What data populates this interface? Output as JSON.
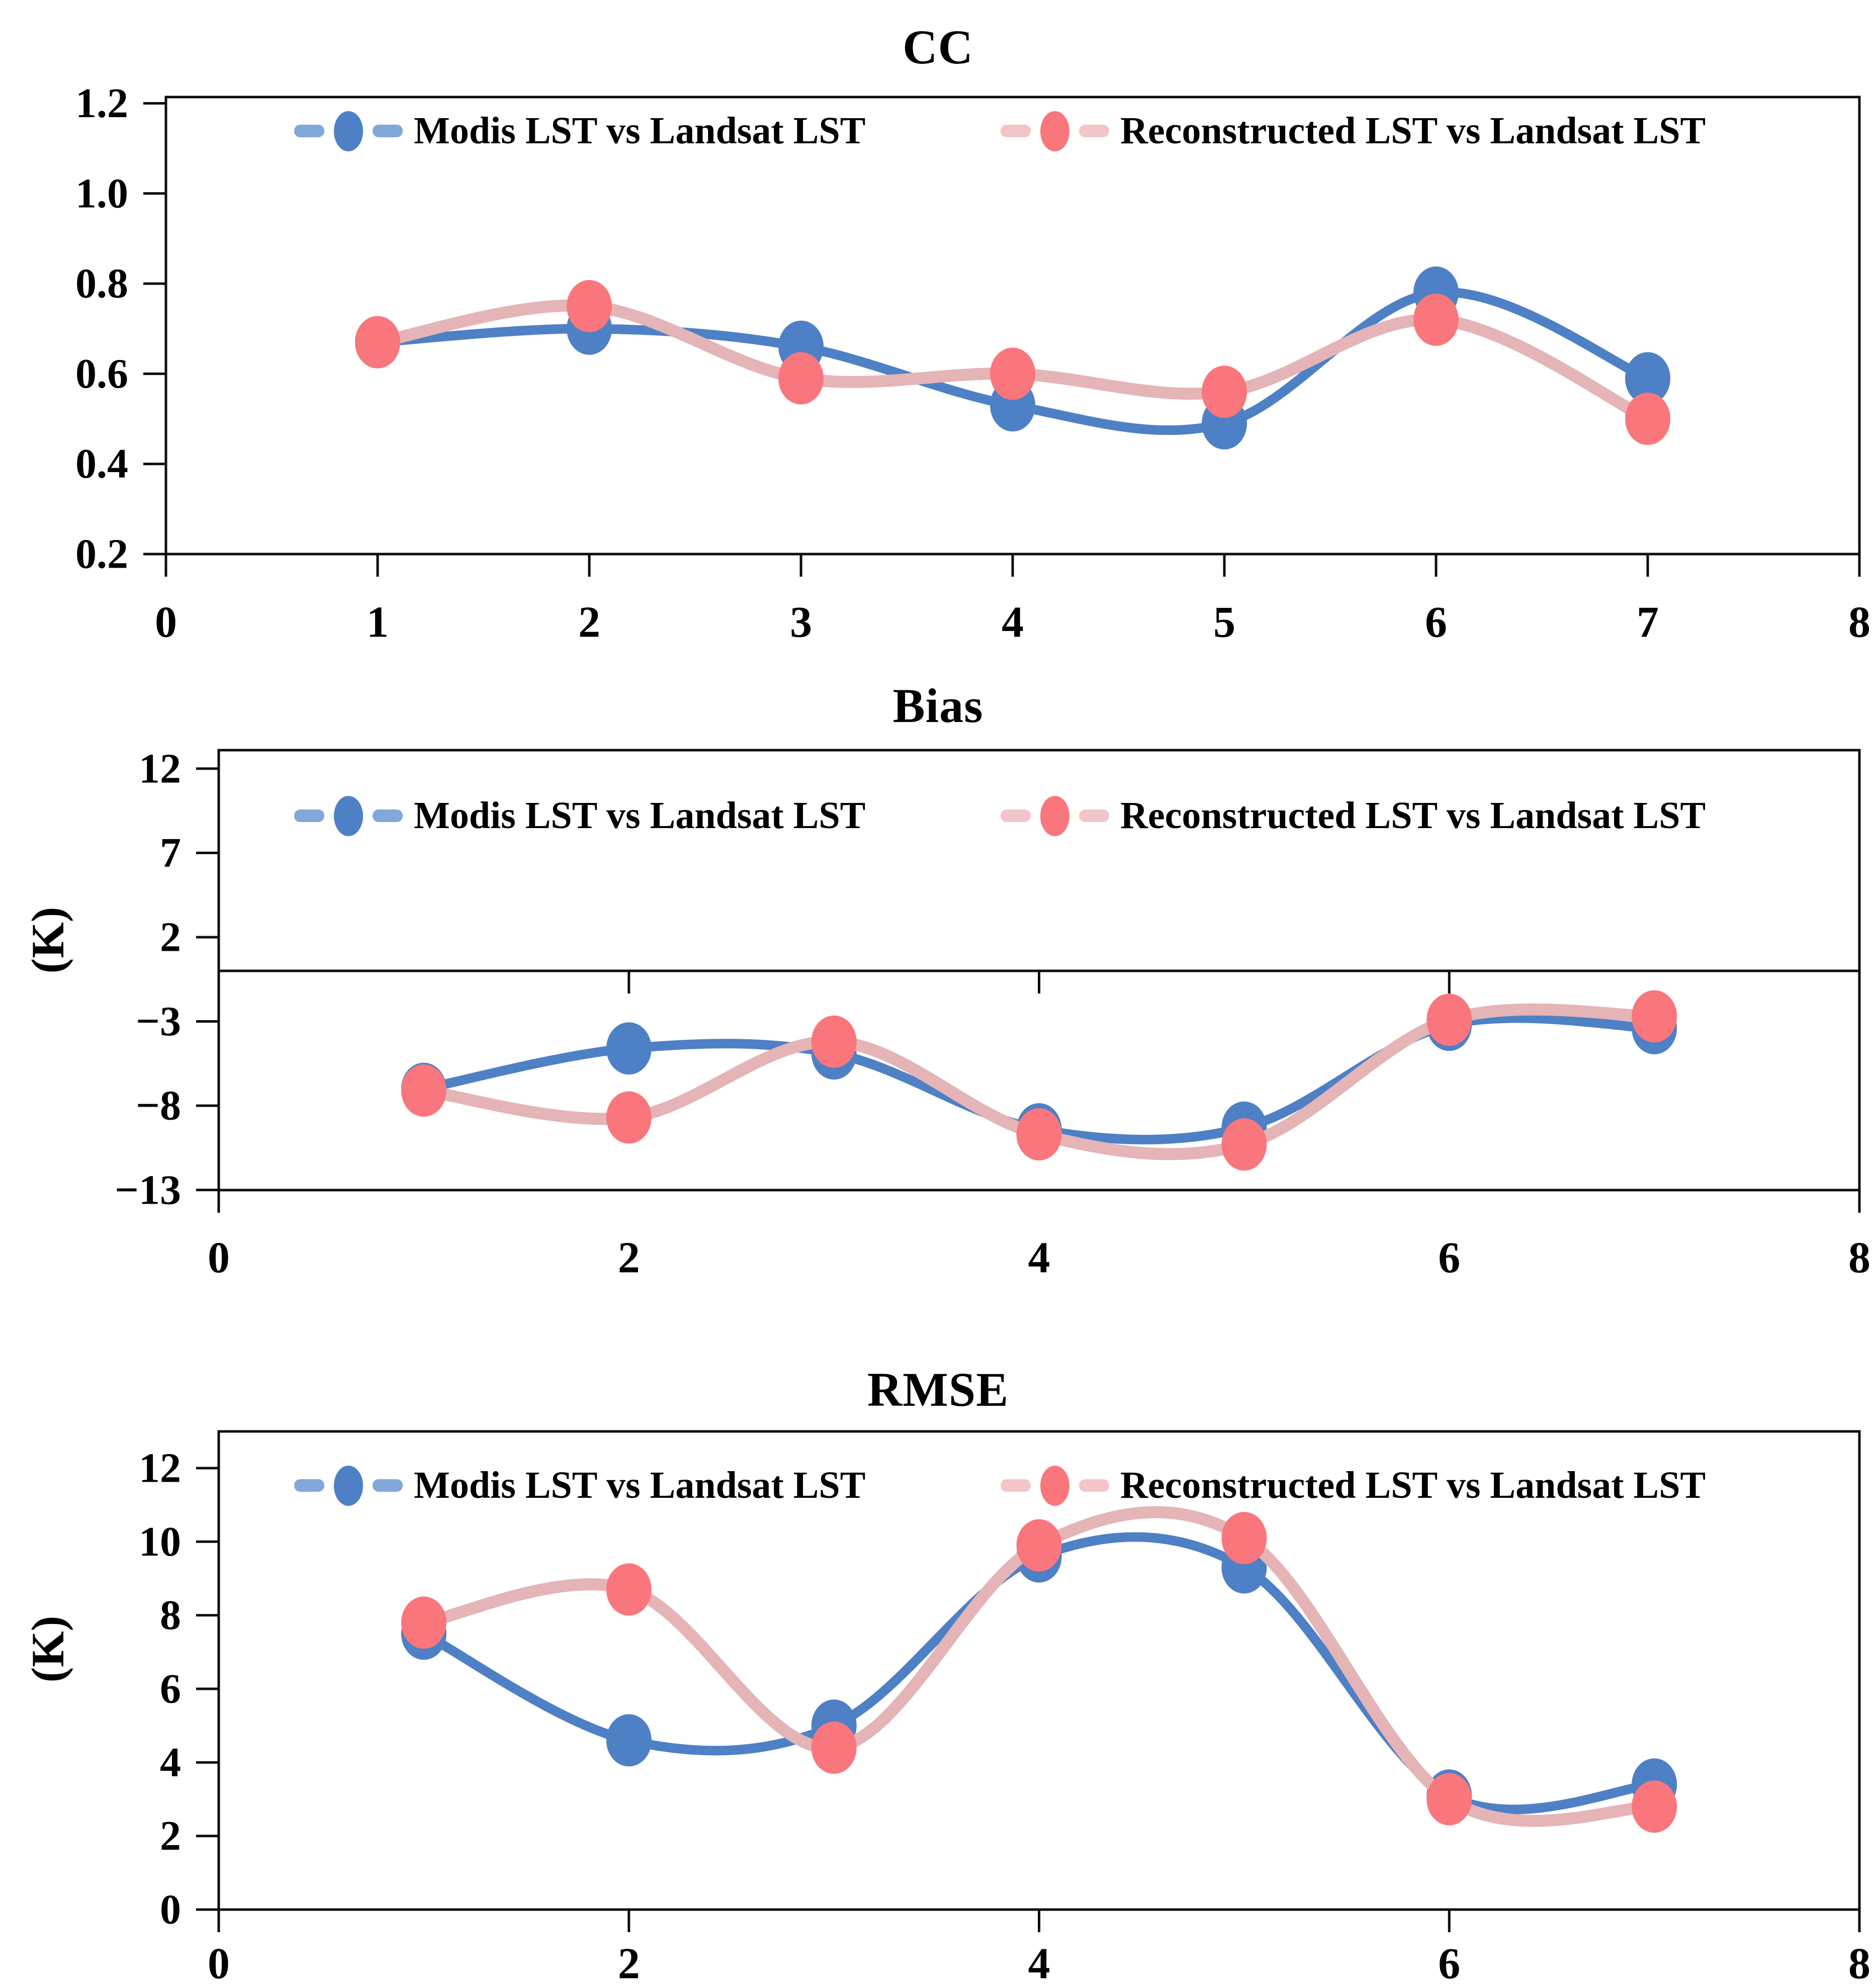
{
  "figure": {
    "background": "#ffffff",
    "colors": {
      "axis": "#0d0d0d",
      "modis_line": "#4e80c5",
      "modis_marker": "#4e80c5",
      "modis_legend_dash": "#82a7db",
      "recon_line": "#e4b4b7",
      "recon_marker": "#f9767c",
      "recon_legend_dash": "#f2c6c9",
      "text": "#000000"
    }
  },
  "chart_data": [
    {
      "type": "line",
      "title": "CC",
      "ylabel": "",
      "x": [
        1,
        2,
        3,
        4,
        5,
        6,
        7
      ],
      "series": [
        {
          "name": "Modis LST vs Landsat LST",
          "values": [
            0.67,
            0.7,
            0.66,
            0.53,
            0.49,
            0.78,
            0.59
          ]
        },
        {
          "name": "Reconstructed LST vs Landsat LST",
          "values": [
            0.67,
            0.75,
            0.59,
            0.6,
            0.56,
            0.72,
            0.5
          ]
        }
      ],
      "xlim": [
        0,
        8
      ],
      "ylim": [
        0.2,
        1.2
      ],
      "yticks": [
        1.2,
        1.0,
        0.8,
        0.6,
        0.4,
        0.2
      ],
      "ytick_labels": [
        "1.2",
        "1.0",
        "0.8",
        "0.6",
        "0.4",
        "0.2"
      ],
      "xticks": [
        0,
        1,
        2,
        3,
        4,
        5,
        6,
        7,
        8
      ],
      "xtick_labels": [
        "0",
        "1",
        "2",
        "3",
        "4",
        "5",
        "6",
        "7",
        "8"
      ],
      "grid": false,
      "legend_position": "top-inside",
      "marker": "ellipse",
      "line_style": "smooth"
    },
    {
      "type": "line",
      "title": "Bias",
      "ylabel": "(K)",
      "x": [
        1,
        2,
        3,
        4,
        5,
        6,
        7
      ],
      "series": [
        {
          "name": "Modis LST vs Landsat LST",
          "values": [
            -7.0,
            -4.6,
            -4.9,
            -9.4,
            -9.3,
            -3.2,
            -3.4
          ]
        },
        {
          "name": "Reconstructed LST vs Landsat LST",
          "values": [
            -7.1,
            -8.7,
            -4.2,
            -9.7,
            -10.3,
            -2.9,
            -2.7
          ]
        }
      ],
      "xlim": [
        0,
        8
      ],
      "ylim": [
        -13,
        12
      ],
      "yticks": [
        12,
        7,
        2,
        -3,
        -8,
        -13
      ],
      "ytick_labels": [
        "12",
        "7",
        "2",
        "−3",
        "−8",
        "−13"
      ],
      "xticks": [
        0,
        2,
        4,
        6,
        8
      ],
      "xtick_labels": [
        "0",
        "2",
        "4",
        "6",
        "8"
      ],
      "x_axis_at_zero": true,
      "grid": false,
      "legend_position": "top-inside",
      "marker": "ellipse",
      "line_style": "smooth"
    },
    {
      "type": "line",
      "title": "RMSE",
      "ylabel": "(K)",
      "x": [
        1,
        2,
        3,
        4,
        5,
        6,
        7
      ],
      "series": [
        {
          "name": "Modis LST vs Landsat LST",
          "values": [
            7.5,
            4.6,
            5.0,
            9.6,
            9.3,
            3.1,
            3.4
          ]
        },
        {
          "name": "Reconstructed LST vs Landsat LST",
          "values": [
            7.8,
            8.7,
            4.4,
            9.9,
            10.1,
            3.0,
            2.8
          ]
        }
      ],
      "xlim": [
        0,
        8
      ],
      "ylim": [
        0,
        12
      ],
      "yticks": [
        12,
        10,
        8,
        6,
        4,
        2,
        0
      ],
      "ytick_labels": [
        "12",
        "10",
        "8",
        "6",
        "4",
        "2",
        "0"
      ],
      "xticks": [
        0,
        2,
        4,
        6,
        8
      ],
      "xtick_labels": [
        "0",
        "2",
        "4",
        "6",
        "8"
      ],
      "grid": false,
      "legend_position": "top-inside",
      "marker": "ellipse",
      "line_style": "smooth"
    }
  ]
}
